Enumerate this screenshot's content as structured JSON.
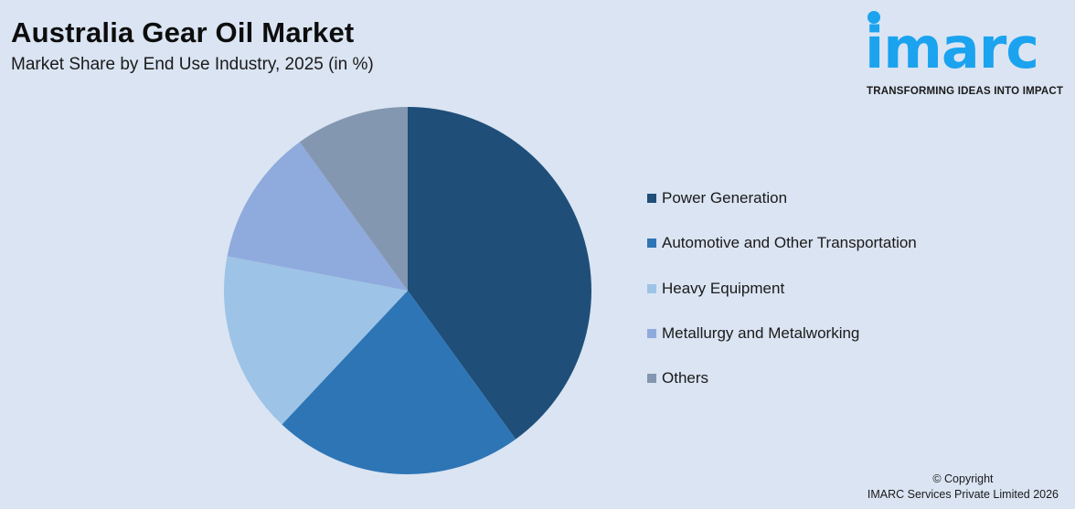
{
  "header": {
    "title": "Australia Gear Oil Market",
    "subtitle": "Market Share by End Use Industry, 2025 (in %)"
  },
  "logo": {
    "wordmark": "imarc",
    "tagline": "TRANSFORMING IDEAS INTO IMPACT",
    "color": "#1ba3ef"
  },
  "chart_data": {
    "type": "pie",
    "title": "Australia Gear Oil Market",
    "subtitle": "Market Share by End Use Industry, 2025 (in %)",
    "categories": [
      "Power Generation",
      "Automotive and Other Transportation",
      "Heavy Equipment",
      "Metallurgy and Metalworking",
      "Others"
    ],
    "values": [
      40,
      22,
      16,
      12,
      10
    ],
    "colors": [
      "#1f4e79",
      "#2e75b6",
      "#9dc3e6",
      "#8faadc",
      "#8497b0"
    ],
    "start_angle": "12 o'clock",
    "direction": "clockwise",
    "legend_position": "right",
    "data_labels": false
  },
  "legend": {
    "items": [
      {
        "label": "Power Generation",
        "color": "#1f4e79"
      },
      {
        "label": "Automotive and Other Transportation",
        "color": "#2e75b6"
      },
      {
        "label": "Heavy Equipment",
        "color": "#9dc3e6"
      },
      {
        "label": "Metallurgy and Metalworking",
        "color": "#8faadc"
      },
      {
        "label": "Others",
        "color": "#8497b0"
      }
    ]
  },
  "footer": {
    "copyright_line1": "© Copyright",
    "copyright_line2": "IMARC Services Private Limited 2026"
  }
}
